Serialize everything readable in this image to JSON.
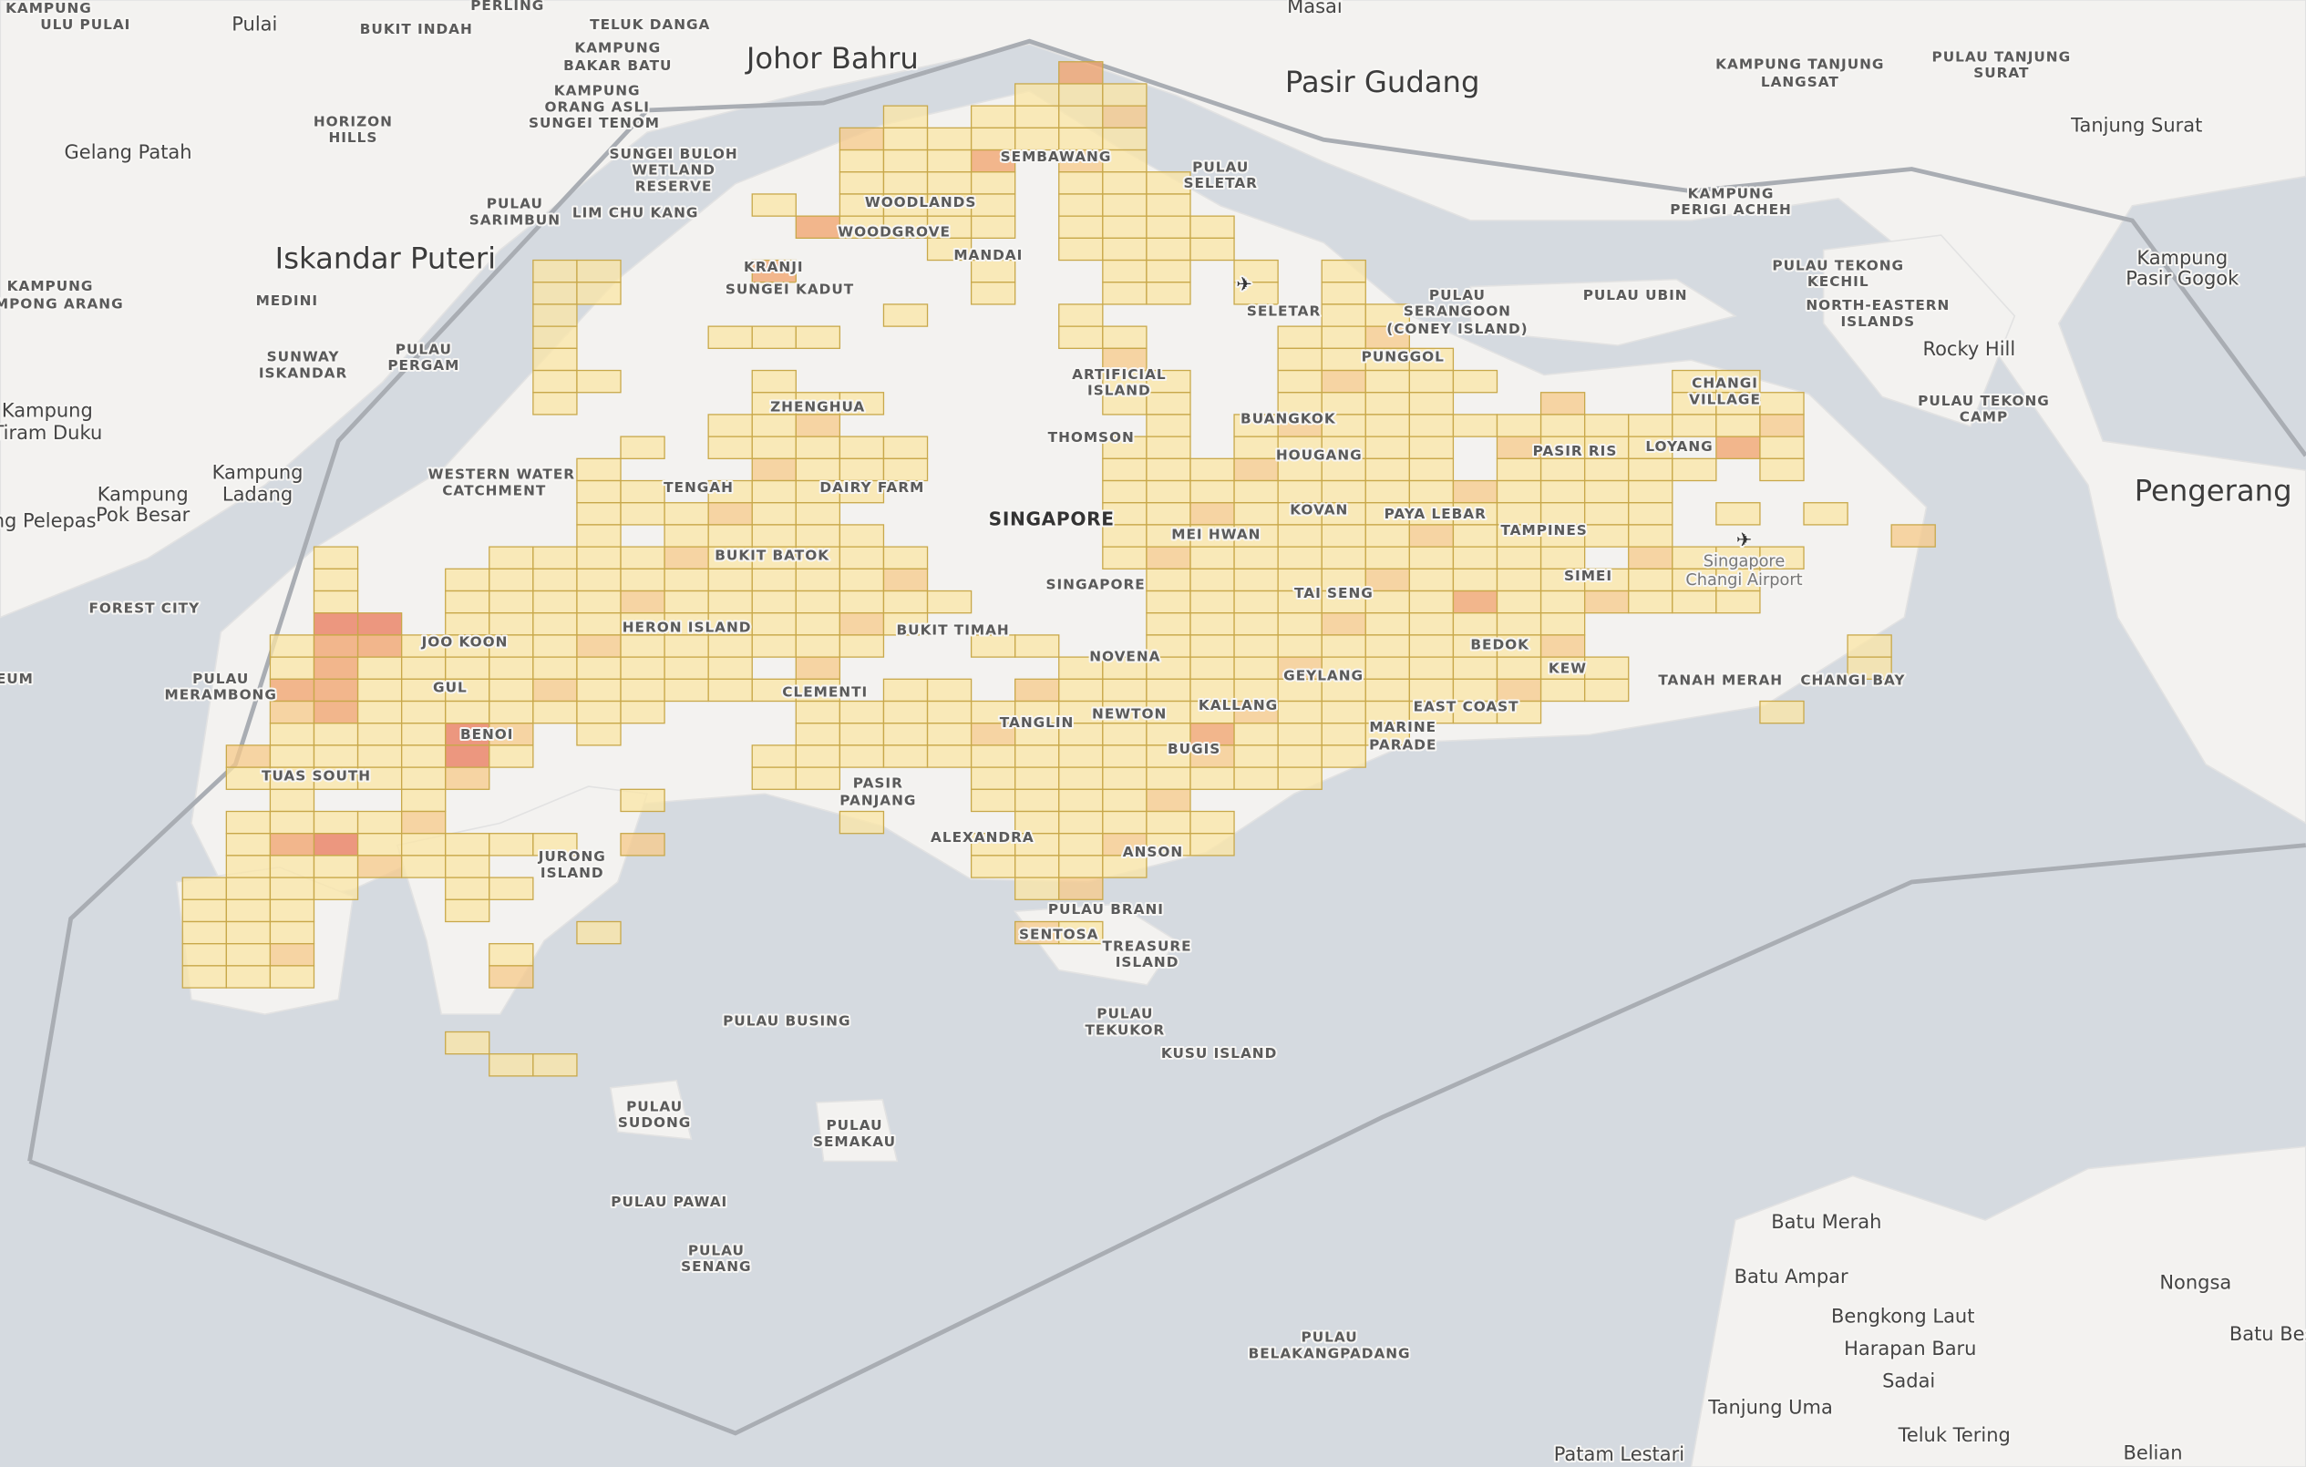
{
  "labels": [
    "Johor Bahru",
    "Pasir Gudang",
    "Iskandar Puteri",
    "Pengerang",
    "SINGAPORE",
    "Pulai",
    "Gelang Patah",
    "Tanjung Surat",
    "Rocky Hill",
    "Batu Merah",
    "Batu Ampar",
    "Bengkong Laut",
    "Harapan Baru",
    "Sadai",
    "Tanjung Uma",
    "Nongsa",
    "Teluk Tering",
    "Patam Lestari",
    "Belian",
    "Masai",
    "Kampung",
    "Pasir Gogok",
    "Kampung",
    "Tiram Duku",
    "Kampung",
    "Ladang",
    "Kampung",
    "Pok Besar",
    "ng Pelepas",
    "Batu Bes",
    "Singapore",
    "Changi Airport",
    "BUKIT INDAH",
    "TELUK DANGA",
    "KAMPUNG",
    "BAKAR BATU",
    "KAMPUNG",
    "ORANG ASLI",
    "SUNGEI TENOM",
    "SUNGEI BULOH",
    "WETLAND",
    "RESERVE",
    "HORIZON",
    "HILLS",
    "PULAU",
    "SARIMBUN",
    "LIM CHU KANG",
    "MEDINI",
    "SUNWAY",
    "ISKANDAR",
    "PULAU",
    "PERGAM",
    "KAMPUNG",
    "ULU PULAI",
    "KAMPUNG",
    "MPONG ARANG",
    "PERLING",
    "SEMBAWANG",
    "WOODLANDS",
    "WOODGROVE",
    "MANDAI",
    "KRANJI",
    "SUNGEI KADUT",
    "SELETAR",
    "PUNGGOL",
    "ARTIFICIAL",
    "ISLAND",
    "BUANGKOK",
    "ZHENGHUA",
    "THOMSON",
    "HOUGANG",
    "TENGAH",
    "DAIRY FARM",
    "KOVAN",
    "PAYA LEBAR",
    "MEI HWAN",
    "TAMPINES",
    "SIMEI",
    "BUKIT BATOK",
    "CHANGI",
    "VILLAGE",
    "LOYANG",
    "PASIR RIS",
    "SINGAPORE",
    "TAI SENG",
    "HERON ISLAND",
    "BUKIT TIMAH",
    "NOVENA",
    "BEDOK",
    "KEW",
    "GEYLANG",
    "TANAH MERAH",
    "CHANGI BAY",
    "CLEMENTI",
    "JOO KOON",
    "GUL",
    "EAST COAST",
    "TANGLIN",
    "NEWTON",
    "KALLANG",
    "MARINE",
    "PARADE",
    "BENOI",
    "BUGIS",
    "TUAS SOUTH",
    "PASIR",
    "PANJANG",
    "ALEXANDRA",
    "ANSON",
    "JURONG",
    "ISLAND",
    "PULAU BRANI",
    "SENTOSA",
    "TREASURE",
    "ISLAND",
    "PULAU",
    "TEKUKOR",
    "KUSU ISLAND",
    "PULAU BUSING",
    "PULAU",
    "SUDONG",
    "PULAU",
    "SEMAKAU",
    "PULAU PAWAI",
    "PULAU",
    "SENANG",
    "PULAU",
    "BELAKANGPADANG",
    "FOREST CITY",
    "PULAU",
    "MERAMBONG",
    "WESTERN WATER",
    "CATCHMENT",
    "PULAU",
    "SELETAR",
    "KAMPUNG TANJUNG",
    "LANGSAT",
    "PULAU TANJUNG",
    "SURAT",
    "KAMPUNG",
    "PERIGI ACHEH",
    "PULAU TEKONG",
    "KECHIL",
    "NORTH-EASTERN",
    "ISLANDS",
    "PULAU UBIN",
    "PULAU",
    "SERANGOON",
    "(CONEY ISLAND)",
    "PULAU TEKONG",
    "CAMP",
    "EUM"
  ]
}
